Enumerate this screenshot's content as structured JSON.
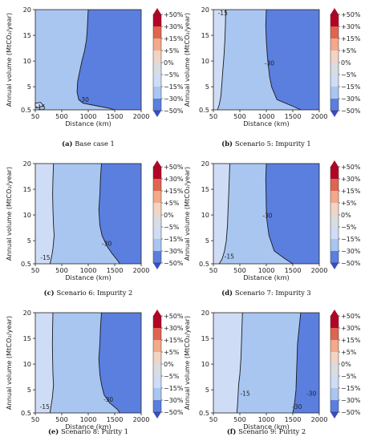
{
  "chart_data": [
    {
      "type": "contour",
      "panel": "a",
      "caption": "Base case 1",
      "xlabel": "Distance (km)",
      "ylabel": "Annual volume (MtCO₂/year)",
      "xlim": [
        50,
        2000
      ],
      "ylim": [
        0.5,
        20
      ],
      "xticks": [
        "50",
        "500",
        "1000",
        "1500",
        "2000"
      ],
      "yticks": [
        "0.5",
        "5",
        "10",
        "15",
        "20"
      ],
      "regions": [
        {
          "level_range": [
            "-30%",
            "-15%"
          ],
          "color": "#a9c6f1",
          "boundary": [
            [
              1000,
              20
            ],
            [
              990,
              18
            ],
            [
              980,
              16
            ],
            [
              965,
              14
            ],
            [
              930,
              12
            ],
            [
              880,
              10
            ],
            [
              840,
              8
            ],
            [
              800,
              6
            ],
            [
              790,
              4
            ],
            [
              820,
              2.5
            ],
            [
              900,
              1.8
            ],
            [
              1200,
              1.2
            ],
            [
              1400,
              0.8
            ],
            [
              1500,
              0.5
            ]
          ]
        },
        {
          "level_range": [
            "-50%",
            "-30%"
          ],
          "color": "#5b7fdf"
        }
      ],
      "contour_lines": [
        {
          "label": "-30",
          "label_at": [
            920,
            2.4
          ]
        },
        {
          "label": "-15",
          "label_at": [
            140,
            0.9
          ]
        }
      ],
      "extra_polygons": [
        {
          "level_range": [
            "-15%",
            "-5%"
          ],
          "color": "#cfdcf6",
          "points": [
            [
              50,
              1.8
            ],
            [
              140,
              1.95
            ],
            [
              190,
              1.3
            ],
            [
              100,
              0.95
            ],
            [
              50,
              1.1
            ]
          ]
        }
      ]
    },
    {
      "type": "contour",
      "panel": "b",
      "caption": "Scenario 5: Impurity 1",
      "xlabel": "Distance (km)",
      "ylabel": "Annual volume (MtCO₂/year)",
      "xlim": [
        50,
        2000
      ],
      "ylim": [
        0.5,
        20
      ],
      "xticks": [
        "50",
        "500",
        "1000",
        "1500",
        "2000"
      ],
      "yticks": [
        "0.5",
        "5",
        "10",
        "15",
        "20"
      ],
      "regions": [
        {
          "level_range": [
            "-15%",
            "-5%"
          ],
          "color": "#cfdcf6",
          "boundary": [
            [
              260,
              20
            ],
            [
              255,
              17
            ],
            [
              245,
              14
            ],
            [
              230,
              11
            ],
            [
              210,
              8
            ],
            [
              190,
              5
            ],
            [
              175,
              3
            ],
            [
              150,
              1.5
            ],
            [
              120,
              0.5
            ]
          ]
        },
        {
          "level_range": [
            "-30%",
            "-15%"
          ],
          "color": "#a9c6f1",
          "boundary": [
            [
              1000,
              20
            ],
            [
              990,
              17
            ],
            [
              1000,
              14
            ],
            [
              1020,
              11
            ],
            [
              1040,
              9
            ],
            [
              1060,
              7
            ],
            [
              1100,
              5
            ],
            [
              1200,
              2.5
            ],
            [
              1500,
              1.2
            ],
            [
              1650,
              0.5
            ]
          ]
        },
        {
          "level_range": [
            "-50%",
            "-30%"
          ],
          "color": "#5b7fdf"
        }
      ],
      "contour_lines": [
        {
          "label": "-30",
          "label_at": [
            1060,
            9.5
          ]
        },
        {
          "label": "-15",
          "label_at": [
            210,
            19.2
          ]
        }
      ]
    },
    {
      "type": "contour",
      "panel": "c",
      "caption": "Scenario 6: Impurity 2",
      "xlabel": "Distance (km)",
      "ylabel": "Annual volume (MtCO₂/year)",
      "xlim": [
        50,
        2000
      ],
      "ylim": [
        0.5,
        20
      ],
      "xticks": [
        "50",
        "500",
        "1000",
        "1500",
        "2000"
      ],
      "yticks": [
        "0.5",
        "5",
        "10",
        "15",
        "20"
      ],
      "regions": [
        {
          "level_range": [
            "-15%",
            "-5%"
          ],
          "color": "#cfdcf6",
          "boundary": [
            [
              360,
              20
            ],
            [
              350,
              17
            ],
            [
              345,
              14
            ],
            [
              350,
              11
            ],
            [
              360,
              8
            ],
            [
              370,
              6
            ],
            [
              350,
              3.5
            ],
            [
              330,
              2
            ],
            [
              300,
              0.5
            ]
          ]
        },
        {
          "level_range": [
            "-30%",
            "-15%"
          ],
          "color": "#a9c6f1",
          "boundary": [
            [
              1250,
              20
            ],
            [
              1230,
              17
            ],
            [
              1220,
              14
            ],
            [
              1200,
              11
            ],
            [
              1220,
              8
            ],
            [
              1260,
              6
            ],
            [
              1350,
              4
            ],
            [
              1450,
              2.5
            ],
            [
              1550,
              1.2
            ],
            [
              1600,
              0.5
            ]
          ]
        },
        {
          "level_range": [
            "-50%",
            "-30%"
          ],
          "color": "#5b7fdf"
        }
      ],
      "contour_lines": [
        {
          "label": "-30",
          "label_at": [
            1350,
            4.3
          ]
        },
        {
          "label": "-15",
          "label_at": [
            220,
            1.6
          ]
        }
      ]
    },
    {
      "type": "contour",
      "panel": "d",
      "caption": "Scenario 7: Impurity 3",
      "xlabel": "Distance (km)",
      "ylabel": "Annual volume (MtCO₂/year)",
      "xlim": [
        50,
        2000
      ],
      "ylim": [
        0.5,
        20
      ],
      "xticks": [
        "50",
        "500",
        "1000",
        "1500",
        "2000"
      ],
      "yticks": [
        "0.5",
        "5",
        "10",
        "15",
        "20"
      ],
      "regions": [
        {
          "level_range": [
            "-15%",
            "-5%"
          ],
          "color": "#cfdcf6",
          "boundary": [
            [
              330,
              20
            ],
            [
              320,
              17
            ],
            [
              310,
              14
            ],
            [
              300,
              11
            ],
            [
              290,
              8
            ],
            [
              270,
              5
            ],
            [
              240,
              3
            ],
            [
              200,
              1.5
            ],
            [
              150,
              0.5
            ]
          ]
        },
        {
          "level_range": [
            "-30%",
            "-15%"
          ],
          "color": "#a9c6f1",
          "boundary": [
            [
              1000,
              20
            ],
            [
              990,
              17
            ],
            [
              995,
              14
            ],
            [
              1000,
              11
            ],
            [
              1010,
              9
            ],
            [
              1050,
              6
            ],
            [
              1150,
              3
            ],
            [
              1350,
              1.5
            ],
            [
              1500,
              0.5
            ]
          ]
        },
        {
          "level_range": [
            "-50%",
            "-30%"
          ],
          "color": "#5b7fdf"
        }
      ],
      "contour_lines": [
        {
          "label": "-30",
          "label_at": [
            1020,
            9.8
          ]
        },
        {
          "label": "-15",
          "label_at": [
            320,
            1.8
          ]
        }
      ]
    },
    {
      "type": "contour",
      "panel": "e",
      "caption": "Scenario 8: Purity 1",
      "xlabel": "Distance (km)",
      "ylabel": "Annual volume (MtCO₂/year)",
      "xlim": [
        50,
        2000
      ],
      "ylim": [
        0.5,
        20
      ],
      "xticks": [
        "50",
        "500",
        "1000",
        "1500",
        "2000"
      ],
      "yticks": [
        "0.5",
        "5",
        "10",
        "15",
        "20"
      ],
      "regions": [
        {
          "level_range": [
            "-15%",
            "-5%"
          ],
          "color": "#cfdcf6",
          "boundary": [
            [
              350,
              20
            ],
            [
              345,
              17
            ],
            [
              340,
              14
            ],
            [
              345,
              11
            ],
            [
              350,
              8
            ],
            [
              360,
              6
            ],
            [
              340,
              3.5
            ],
            [
              320,
              2
            ],
            [
              300,
              0.5
            ]
          ]
        },
        {
          "level_range": [
            "-30%",
            "-15%"
          ],
          "color": "#a9c6f1",
          "boundary": [
            [
              1250,
              20
            ],
            [
              1230,
              17
            ],
            [
              1220,
              14
            ],
            [
              1200,
              11
            ],
            [
              1220,
              8
            ],
            [
              1250,
              6
            ],
            [
              1300,
              4
            ],
            [
              1400,
              2.5
            ],
            [
              1550,
              1.2
            ],
            [
              1600,
              0.5
            ]
          ]
        },
        {
          "level_range": [
            "-50%",
            "-30%"
          ],
          "color": "#5b7fdf"
        }
      ],
      "contour_lines": [
        {
          "label": "-30",
          "label_at": [
            1380,
            3.0
          ]
        },
        {
          "label": "-15",
          "label_at": [
            210,
            1.6
          ]
        }
      ]
    },
    {
      "type": "contour",
      "panel": "f",
      "caption": "Scenario 9: Purity 2",
      "xlabel": "Distance (km)",
      "ylabel": "Annual volume (MtCO₂/year)",
      "xlim": [
        50,
        2000
      ],
      "ylim": [
        0.5,
        20
      ],
      "xticks": [
        "50",
        "500",
        "1000",
        "1500",
        "2000"
      ],
      "yticks": [
        "0.5",
        "5",
        "10",
        "15",
        "20"
      ],
      "regions": [
        {
          "level_range": [
            "-15%",
            "-5%"
          ],
          "color": "#cfdcf6",
          "boundary": [
            [
              550,
              20
            ],
            [
              540,
              17
            ],
            [
              530,
              14
            ],
            [
              520,
              11
            ],
            [
              500,
              8
            ],
            [
              480,
              6
            ],
            [
              470,
              4
            ],
            [
              460,
              2
            ],
            [
              450,
              0.5
            ]
          ]
        },
        {
          "level_range": [
            "-30%",
            "-15%"
          ],
          "color": "#a9c6f1",
          "boundary": [
            [
              1650,
              20
            ],
            [
              1620,
              17
            ],
            [
              1590,
              14
            ],
            [
              1580,
              11
            ],
            [
              1570,
              8
            ],
            [
              1560,
              5
            ],
            [
              1540,
              3
            ],
            [
              1520,
              1.5
            ],
            [
              1500,
              0.5
            ]
          ]
        },
        {
          "level_range": [
            "-50%",
            "-30%"
          ],
          "color": "#5b7fdf"
        }
      ],
      "contour_lines": [
        {
          "label": "-30",
          "label_at": [
            1850,
            4.2
          ]
        },
        {
          "label": "-30",
          "label_at": [
            1580,
            1.6
          ]
        },
        {
          "label": "-15",
          "label_at": [
            600,
            4.2
          ]
        }
      ]
    }
  ],
  "colorbar": {
    "labels": [
      "+50%",
      "+30%",
      "+15%",
      "+5%",
      "0%",
      "−5%",
      "−15%",
      "−30%",
      "−50%"
    ],
    "colors": [
      "#b40426",
      "#e0654f",
      "#f4a98b",
      "#f2d4c4",
      "#d9dce1",
      "#cfdcf6",
      "#a9c6f1",
      "#5b7fdf",
      "#3b4cc0"
    ]
  }
}
